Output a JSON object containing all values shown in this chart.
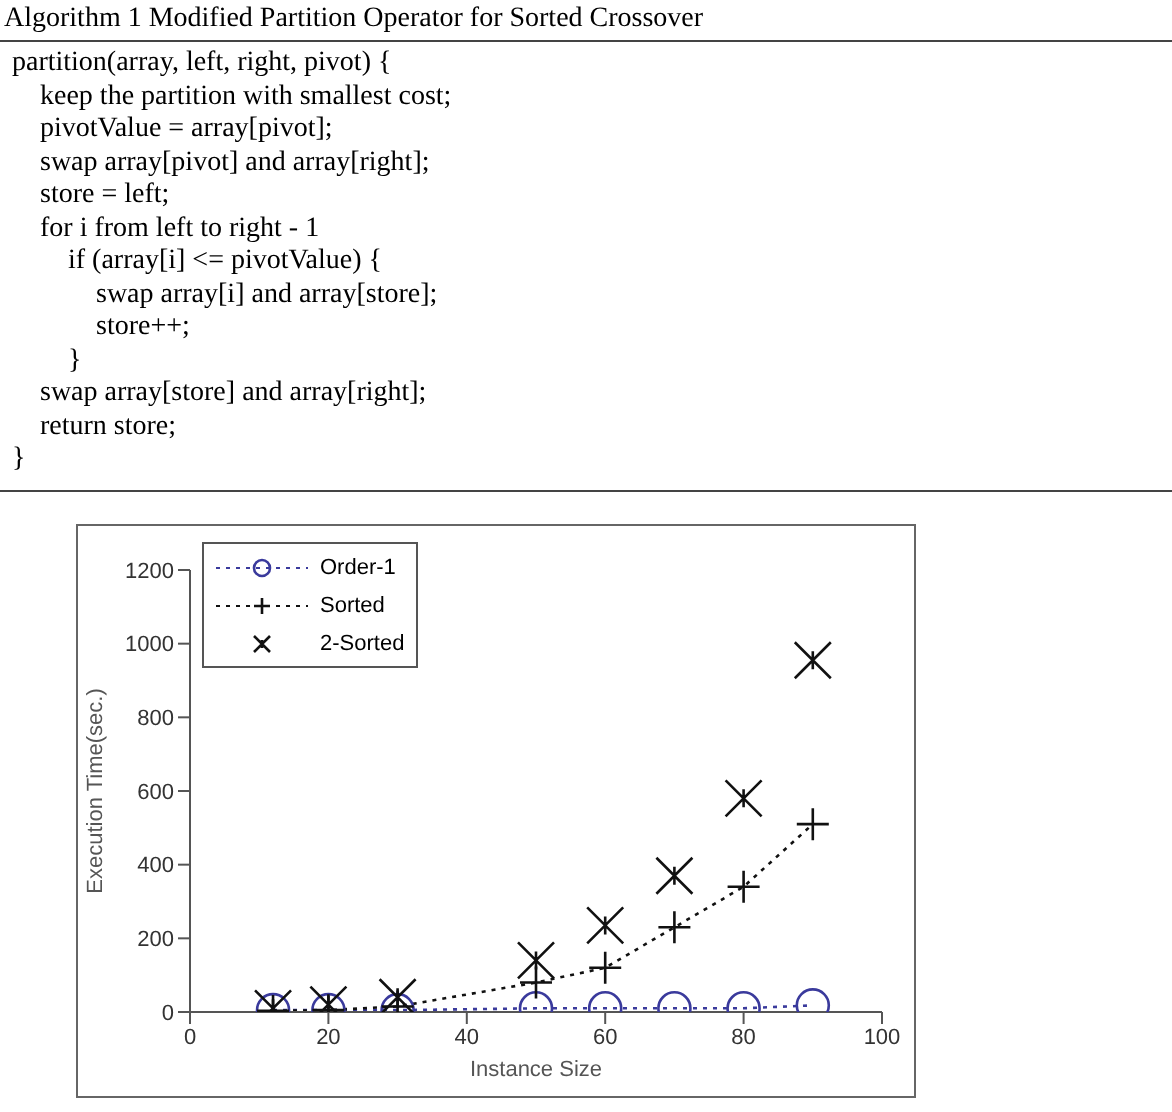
{
  "chart_data": {
    "type": "line",
    "title": "Algorithm 1 Modified Partition Operator for Sorted Crossover",
    "annotations": [
      "partition(array, left, right, pivot) {",
      "    keep the partition with smallest cost;",
      "    pivotValue = array[pivot];",
      "    swap array[pivot] and array[right];",
      "    store = left;",
      "    for i from left to right - 1",
      "        if (array[i] <= pivotValue) {",
      "            swap array[i] and array[store];",
      "            store++;",
      "        }",
      "    swap array[store] and array[right];",
      "    return store;",
      "}"
    ],
    "xlabel": "Instance Size",
    "ylabel": "Execution Time(sec.)",
    "x": [
      12,
      20,
      30,
      50,
      60,
      70,
      80,
      90
    ],
    "series": [
      {
        "name": "Order-1",
        "type": "line",
        "color": "#3a3a9c",
        "marker": "circle",
        "line_style": "dotted",
        "values": [
          5,
          5,
          5,
          10,
          10,
          10,
          10,
          18
        ]
      },
      {
        "name": "Sorted",
        "type": "line",
        "color": "#111111",
        "marker": "cross",
        "line_style": "dotted",
        "values": [
          3,
          5,
          15,
          80,
          120,
          230,
          340,
          510
        ]
      },
      {
        "name": "2-Sorted",
        "type": "scatter",
        "color": "#111111",
        "marker": "cross",
        "values": [
          10,
          20,
          40,
          140,
          235,
          370,
          580,
          955
        ]
      }
    ],
    "xlim": [
      0,
      100
    ],
    "xticks": [
      0,
      20,
      40,
      60,
      80,
      100
    ],
    "ylim": [
      0,
      1200
    ],
    "yticks": [
      0,
      200,
      400,
      600,
      800,
      1000,
      1200
    ],
    "legend": "top left"
  }
}
